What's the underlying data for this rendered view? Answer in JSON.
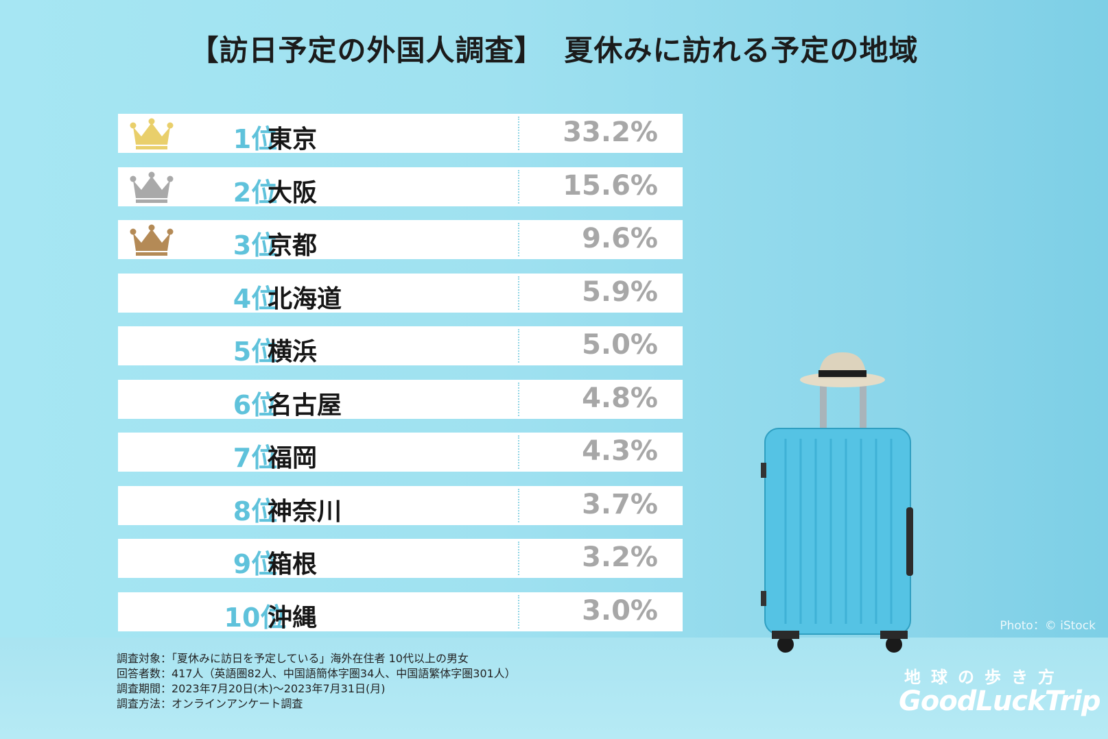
{
  "title_part1": "【訪日予定の外国人調査】",
  "title_part2": "夏休みに訪れる予定の地域",
  "chart_data": {
    "type": "table",
    "title": "【訪日予定の外国人調査】 夏休みに訪れる予定の地域",
    "unit": "%",
    "rows": [
      {
        "rank": "1位",
        "region": "東京",
        "value": 33.2,
        "label": "33.2%",
        "crown": "gold"
      },
      {
        "rank": "2位",
        "region": "大阪",
        "value": 15.6,
        "label": "15.6%",
        "crown": "silver"
      },
      {
        "rank": "3位",
        "region": "京都",
        "value": 9.6,
        "label": "9.6%",
        "crown": "bronze"
      },
      {
        "rank": "4位",
        "region": "北海道",
        "value": 5.9,
        "label": "5.9%",
        "crown": ""
      },
      {
        "rank": "5位",
        "region": "横浜",
        "value": 5.0,
        "label": "5.0%",
        "crown": ""
      },
      {
        "rank": "6位",
        "region": "名古屋",
        "value": 4.8,
        "label": "4.8%",
        "crown": ""
      },
      {
        "rank": "7位",
        "region": "福岡",
        "value": 4.3,
        "label": "4.3%",
        "crown": ""
      },
      {
        "rank": "8位",
        "region": "神奈川",
        "value": 3.7,
        "label": "3.7%",
        "crown": ""
      },
      {
        "rank": "9位",
        "region": "箱根",
        "value": 3.2,
        "label": "3.2%",
        "crown": ""
      },
      {
        "rank": "10位",
        "region": "沖縄",
        "value": 3.0,
        "label": "3.0%",
        "crown": ""
      }
    ]
  },
  "colors": {
    "gold": "#e9cf6b",
    "silver": "#a9a9a9",
    "bronze": "#b48a56",
    "rank_text": "#5fc2db",
    "value_text": "#a7a7a7"
  },
  "notes": {
    "target": "調査対象：「夏休みに訪日を予定している」海外在住者 10代以上の男女",
    "respondents": "回答者数：417人（英語圏82人、中国語簡体字圏34人、中国語繁体字圏301人）",
    "period": "調査期間：2023年7月20日(木)～2023年7月31日(月)",
    "method": "調査方法：オンラインアンケート調査"
  },
  "photo_credit": "Photo：© iStock",
  "logo": {
    "top": "地球の歩き方",
    "bottom": "GoodLuckTrip"
  }
}
